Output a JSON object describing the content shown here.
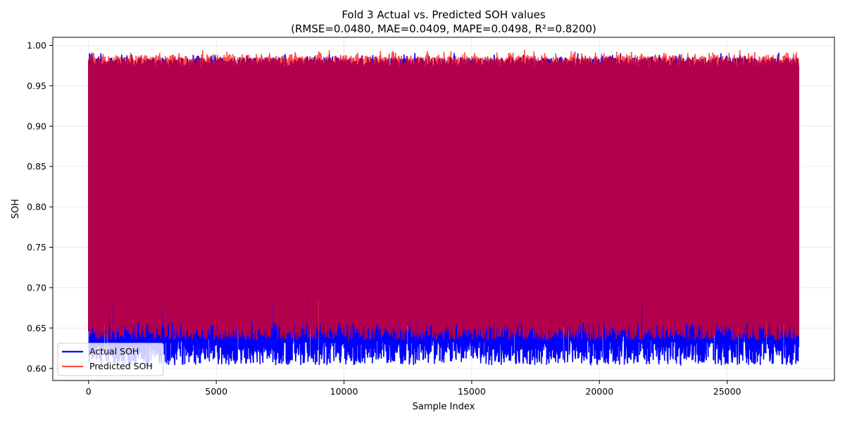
{
  "chart_data": {
    "type": "line",
    "title": "Fold 3 Actual vs. Predicted SOH values",
    "subtitle": "(RMSE=0.0480, MAE=0.0409, MAPE=0.0498, R²=0.8200)",
    "xlabel": "Sample Index",
    "ylabel": "SOH",
    "xlim": [
      -1400,
      29200
    ],
    "ylim": [
      0.585,
      1.01
    ],
    "xticks": [
      0,
      5000,
      10000,
      15000,
      20000,
      25000
    ],
    "xtick_labels": [
      "0",
      "5000",
      "10000",
      "15000",
      "20000",
      "25000"
    ],
    "yticks": [
      0.6,
      0.65,
      0.7,
      0.75,
      0.8,
      0.85,
      0.9,
      0.95,
      1.0
    ],
    "ytick_labels": [
      "0.60",
      "0.65",
      "0.70",
      "0.75",
      "0.80",
      "0.85",
      "0.90",
      "0.95",
      "1.00"
    ],
    "grid": true,
    "legend_position": "lower-left",
    "n_samples": 27800,
    "series": [
      {
        "name": "Actual SOH",
        "color": "#0000ff",
        "y_range": [
          0.604,
          0.985
        ],
        "note_values": "dense oscillation between ~0.605 and ~0.985 across all samples"
      },
      {
        "name": "Predicted SOH",
        "color": "#ff0000",
        "alpha": 0.7,
        "y_range": [
          0.625,
          0.992
        ],
        "note_values": "dense oscillation between ~0.63 and ~0.99 across all samples"
      }
    ]
  }
}
